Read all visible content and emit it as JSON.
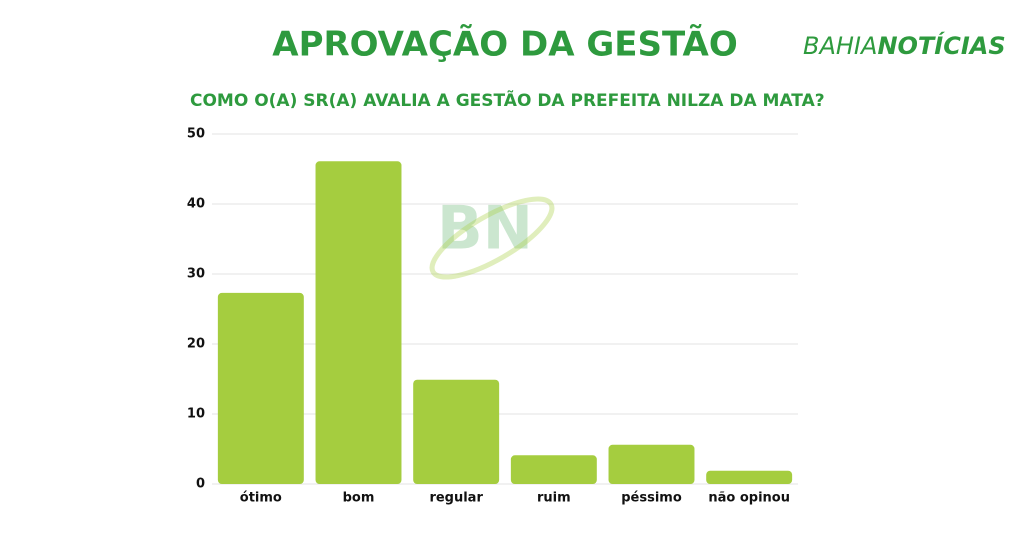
{
  "chart_data": {
    "type": "bar",
    "title": "APROVAÇÃO DA GESTÃO",
    "subtitle": "COMO O(A) SR(A) AVALIA A GESTÃO DA PREFEITA NILZA DA MATA?",
    "brand": {
      "part1": "BAHIA",
      "part2": "NOTÍCIAS"
    },
    "watermark": "BN",
    "categories": [
      "ótimo",
      "bom",
      "regular",
      "ruim",
      "péssimo",
      "não opinou"
    ],
    "values": [
      27.3,
      46.1,
      14.9,
      4.1,
      5.6,
      1.9
    ],
    "color": "#a5cd3f",
    "ylim": [
      0,
      50
    ],
    "yticks": [
      0,
      10,
      20,
      30,
      40,
      50
    ],
    "grid": true
  }
}
